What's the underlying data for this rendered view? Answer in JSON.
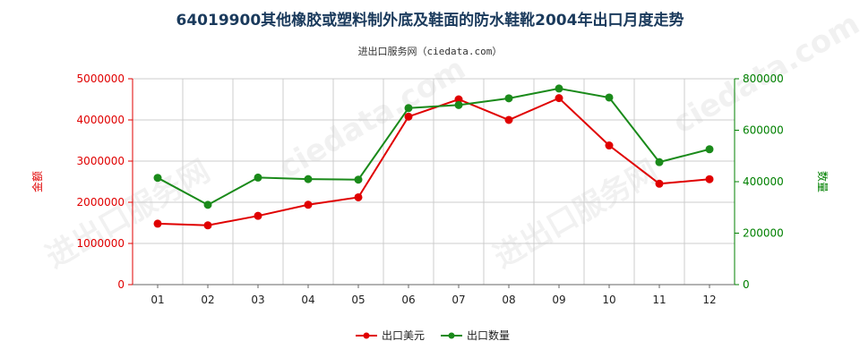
{
  "chart_data": {
    "type": "line",
    "title": "64019900其他橡胶或塑料制外底及鞋面的防水鞋靴2004年出口月度走势",
    "subtitle": "进出口服务网（ciedata.com）",
    "categories": [
      "01",
      "02",
      "03",
      "04",
      "05",
      "06",
      "07",
      "08",
      "09",
      "10",
      "11",
      "12"
    ],
    "y_left": {
      "label": "金额",
      "ylim": [
        0,
        5000000
      ],
      "ticks": [
        "0",
        "1000000",
        "2000000",
        "3000000",
        "4000000",
        "5000000"
      ],
      "color": "#e00000"
    },
    "y_right": {
      "label": "数量",
      "ylim": [
        0,
        800000
      ],
      "ticks": [
        "0",
        "200000",
        "400000",
        "600000",
        "800000"
      ],
      "color": "#008000"
    },
    "grid": true,
    "legend_position": "bottom",
    "series": [
      {
        "name": "出口美元",
        "axis": "left",
        "color": "#e00000",
        "values": [
          1480000,
          1440000,
          1670000,
          1940000,
          2120000,
          4080000,
          4500000,
          4000000,
          4530000,
          3380000,
          2450000,
          2560000
        ]
      },
      {
        "name": "出口数量",
        "axis": "right",
        "color": "#1a8a1a",
        "values": [
          415000,
          310000,
          416000,
          410000,
          408000,
          686000,
          698000,
          724000,
          762000,
          727000,
          476000,
          526000
        ]
      }
    ]
  }
}
